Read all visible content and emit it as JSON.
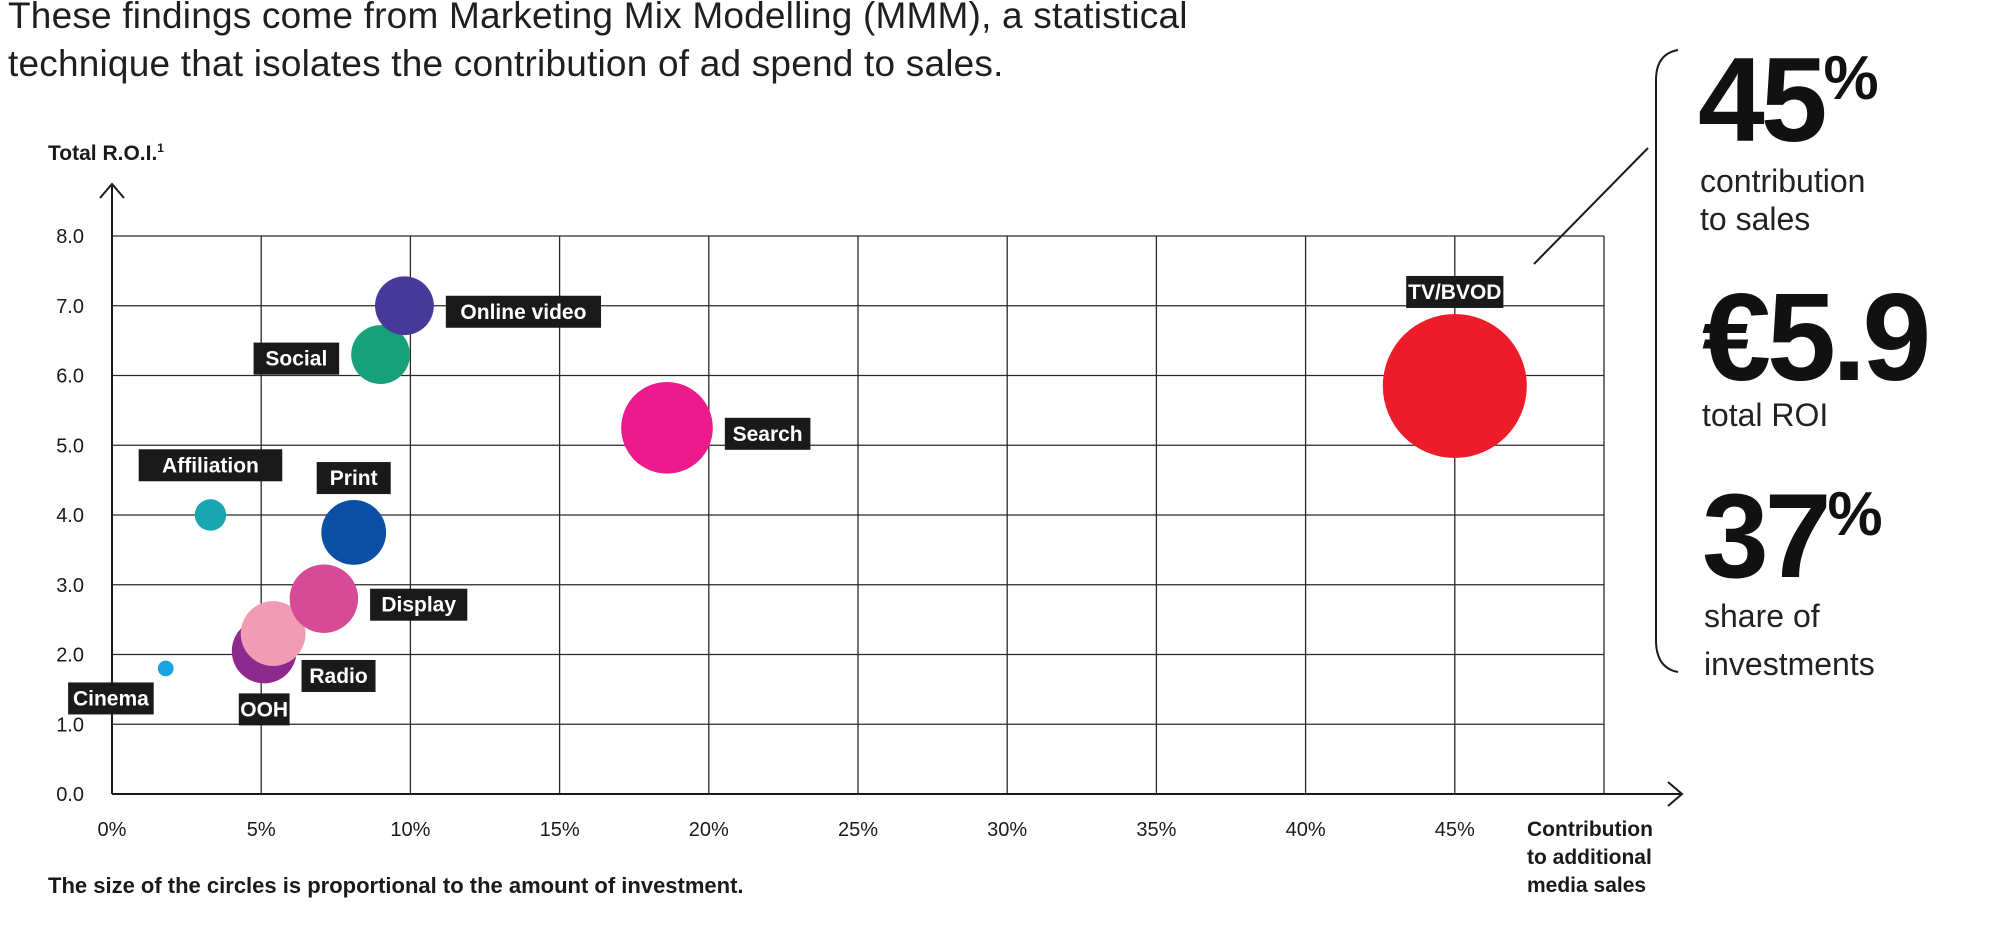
{
  "intro": {
    "line1": "These findings come from Marketing Mix Modelling (MMM), a statistical",
    "line2": "technique that isolates the contribution of ad spend to sales."
  },
  "chart_data": {
    "type": "scatter",
    "subtype": "bubble",
    "ylabel": "Total R.O.I.",
    "ylabel_sup": "1",
    "xlabel_lines": [
      "Contribution",
      "to additional",
      "media sales"
    ],
    "xlim": [
      0,
      50
    ],
    "ylim": [
      0,
      8
    ],
    "x_ticks": [
      0,
      5,
      10,
      15,
      20,
      25,
      30,
      35,
      40,
      45
    ],
    "x_tick_labels": [
      "0%",
      "5%",
      "10%",
      "15%",
      "20%",
      "25%",
      "30%",
      "35%",
      "40%",
      "45%"
    ],
    "y_ticks": [
      0,
      1,
      2,
      3,
      4,
      5,
      6,
      7,
      8
    ],
    "y_tick_labels": [
      "0.0",
      "1.0",
      "2.0",
      "3.0",
      "4.0",
      "5.0",
      "6.0",
      "7.0",
      "8.0"
    ],
    "grid": true,
    "footnote": "The size of the circles is proportional to the amount of investment.",
    "points": [
      {
        "name": "Cinema",
        "x": 1.8,
        "y": 1.8,
        "size": 1,
        "color": "#1ba3e0",
        "label_pos": "below-left"
      },
      {
        "name": "Affiliation",
        "x": 3.3,
        "y": 4.0,
        "size": 4,
        "color": "#1aa6b0",
        "label_pos": "above-left"
      },
      {
        "name": "OOH",
        "x": 5.1,
        "y": 2.05,
        "size": 17,
        "color": "#8e2a8e",
        "label_pos": "below"
      },
      {
        "name": "Radio",
        "x": 5.4,
        "y": 2.3,
        "size": 17,
        "color": "#f29bb4",
        "label_pos": "below-right"
      },
      {
        "name": "Display",
        "x": 7.1,
        "y": 2.8,
        "size": 19,
        "color": "#d64a96",
        "label_pos": "right"
      },
      {
        "name": "Print",
        "x": 8.1,
        "y": 3.75,
        "size": 17,
        "color": "#0a4fa3",
        "label_pos": "above"
      },
      {
        "name": "Social",
        "x": 9.0,
        "y": 6.3,
        "size": 14,
        "color": "#17a17a",
        "label_pos": "left"
      },
      {
        "name": "Online video",
        "x": 9.8,
        "y": 7.0,
        "size": 14,
        "color": "#453a9a",
        "label_pos": "right"
      },
      {
        "name": "Search",
        "x": 18.6,
        "y": 5.25,
        "size": 34,
        "color": "#ec1a8c",
        "label_pos": "right"
      },
      {
        "name": "TV/BVOD",
        "x": 45.0,
        "y": 5.85,
        "size": 84,
        "color": "#ec1c2a",
        "label_pos": "above"
      }
    ]
  },
  "stats": {
    "contribution": {
      "value": "45",
      "unit": "%",
      "caption_line1": "contribution",
      "caption_line2": "to sales"
    },
    "roi": {
      "value": "€5.9",
      "caption": "total ROI"
    },
    "share": {
      "value": "37",
      "unit": "%",
      "caption_line1": "share of",
      "caption_line2": "investments"
    }
  },
  "colors": {
    "grid": "#2a2a2a",
    "label_bg": "#1a1a1a",
    "label_text": "#ffffff"
  }
}
